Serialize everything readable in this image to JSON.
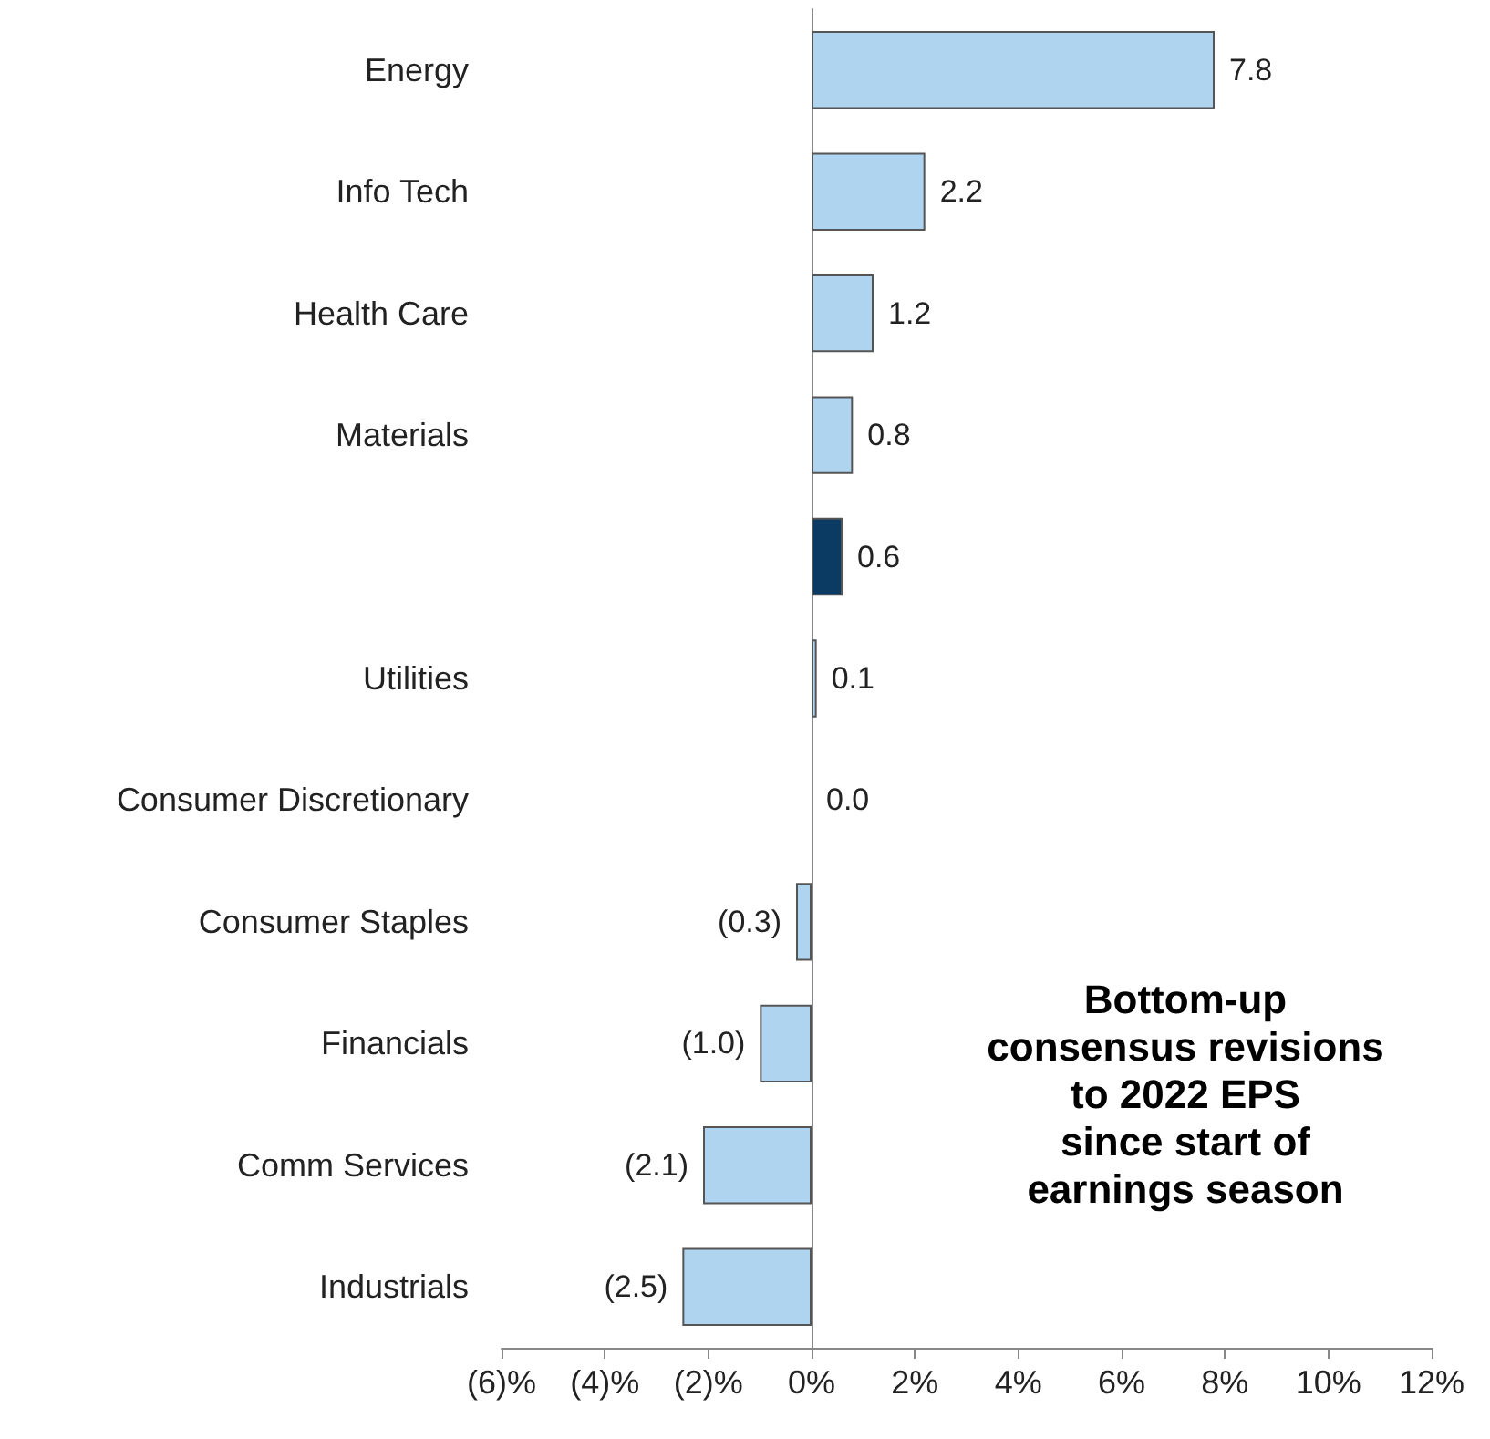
{
  "chart_data": {
    "type": "bar",
    "orientation": "horizontal",
    "categories": [
      "Energy",
      "Info Tech",
      "Health Care",
      "Materials",
      null,
      "Utilities",
      "Consumer Discretionary",
      "Consumer Staples",
      "Financials",
      "Comm Services",
      "Industrials"
    ],
    "values": [
      7.8,
      2.2,
      1.2,
      0.8,
      0.6,
      0.1,
      0.0,
      -0.3,
      -1.0,
      -2.1,
      -2.5
    ],
    "value_labels": [
      "7.8",
      "2.2",
      "1.2",
      "0.8",
      "0.6",
      "0.1",
      "0.0",
      "(0.3)",
      "(1.0)",
      "(2.1)",
      "(2.5)"
    ],
    "colors": [
      "#aed4f0",
      "#aed4f0",
      "#aed4f0",
      "#aed4f0",
      "#0b3a63",
      "#aed4f0",
      "#aed4f0",
      "#aed4f0",
      "#aed4f0",
      "#aed4f0",
      "#aed4f0"
    ],
    "xlim": [
      -6,
      12
    ],
    "xticks": [
      {
        "value": -6,
        "label": "(6)%"
      },
      {
        "value": -4,
        "label": "(4)%"
      },
      {
        "value": -2,
        "label": "(2)%"
      },
      {
        "value": 0,
        "label": "0%"
      },
      {
        "value": 2,
        "label": "2%"
      },
      {
        "value": 4,
        "label": "4%"
      },
      {
        "value": 6,
        "label": "6%"
      },
      {
        "value": 8,
        "label": "8%"
      },
      {
        "value": 10,
        "label": "10%"
      },
      {
        "value": 12,
        "label": "12%"
      }
    ],
    "annotations": [
      "Bottom-up\nconsensus revisions\nto 2022 EPS\nsince start of\nearnings season"
    ]
  }
}
